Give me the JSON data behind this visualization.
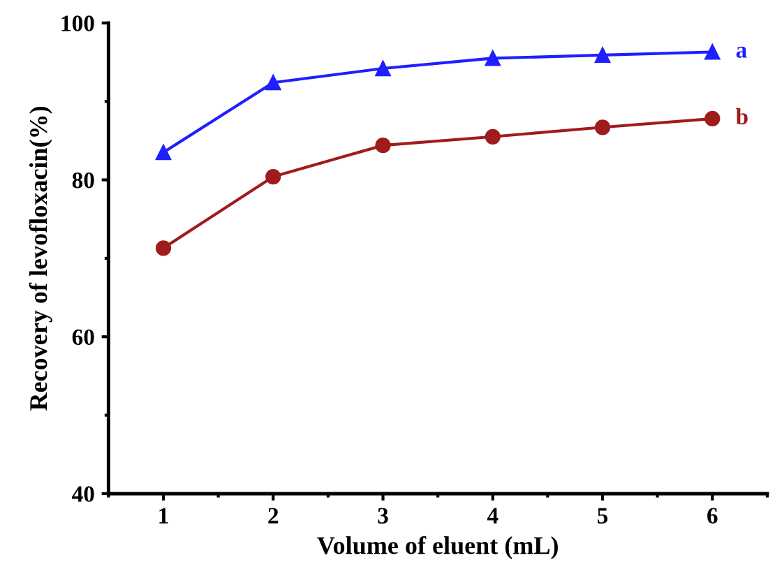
{
  "chart_data": {
    "type": "line",
    "xlabel": "Volume of eluent (mL)",
    "ylabel": "Recovery of levofloxacin(%)",
    "x": [
      1,
      2,
      3,
      4,
      5,
      6
    ],
    "series": [
      {
        "name": "a",
        "color": "#1f1fff",
        "marker": "triangle",
        "values": [
          83.5,
          92.4,
          94.2,
          95.5,
          95.9,
          96.3
        ]
      },
      {
        "name": "b",
        "color": "#a01c1c",
        "marker": "circle",
        "values": [
          71.3,
          80.4,
          84.4,
          85.5,
          86.7,
          87.8
        ]
      }
    ],
    "xlim": [
      0.5,
      6.5
    ],
    "xticks": [
      1,
      2,
      3,
      4,
      5,
      6
    ],
    "ylim": [
      40,
      100
    ],
    "yticks": [
      40,
      60,
      80,
      100
    ],
    "grid": false,
    "legend": false,
    "line_style": "solid"
  }
}
